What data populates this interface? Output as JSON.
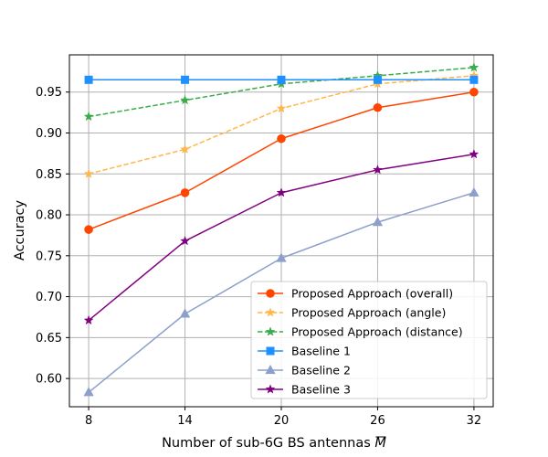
{
  "chart_data": {
    "type": "line",
    "title": "",
    "xlabel": "Number of sub-6G BS antennas",
    "xlabel_symbol": "M",
    "ylabel": "Accuracy",
    "x": [
      8,
      14,
      20,
      26,
      32
    ],
    "xticks": [
      "8",
      "14",
      "20",
      "26",
      "32"
    ],
    "yticks": [
      "0.60",
      "0.65",
      "0.70",
      "0.75",
      "0.80",
      "0.85",
      "0.90",
      "0.95"
    ],
    "ytick_values": [
      0.6,
      0.65,
      0.7,
      0.75,
      0.8,
      0.85,
      0.9,
      0.95
    ],
    "xlim": [
      6.8,
      33.2
    ],
    "ylim": [
      0.5655,
      0.9955
    ],
    "grid": true,
    "legend_position": "lower-right",
    "series": [
      {
        "name": "Proposed Approach (overall)",
        "values": [
          0.782,
          0.827,
          0.893,
          0.931,
          0.95
        ],
        "color": "#ff4500",
        "dash": "solid",
        "marker": "circle"
      },
      {
        "name": "Proposed Approach (angle)",
        "values": [
          0.85,
          0.88,
          0.93,
          0.96,
          0.97
        ],
        "color": "#ffb74d",
        "dash": "dashed",
        "marker": "star"
      },
      {
        "name": "Proposed Approach (distance)",
        "values": [
          0.92,
          0.94,
          0.96,
          0.97,
          0.98
        ],
        "color": "#3cab4b",
        "dash": "dashed",
        "marker": "star"
      },
      {
        "name": "Baseline 1",
        "values": [
          0.965,
          0.965,
          0.965,
          0.965,
          0.965
        ],
        "color": "#1e90ff",
        "dash": "solid",
        "marker": "square"
      },
      {
        "name": "Baseline 2",
        "values": [
          0.583,
          0.679,
          0.747,
          0.791,
          0.827
        ],
        "color": "#8da0cb",
        "dash": "solid",
        "marker": "triangle"
      },
      {
        "name": "Baseline 3",
        "values": [
          0.671,
          0.768,
          0.827,
          0.855,
          0.874
        ],
        "color": "#800080",
        "dash": "solid",
        "marker": "star"
      }
    ]
  }
}
